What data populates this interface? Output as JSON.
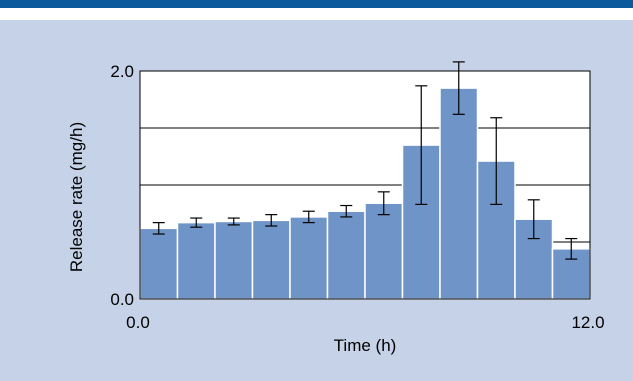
{
  "colors": {
    "top_bar": "#0a5a9c",
    "panel_bg": "#c5d2e8",
    "plot_bg": "#ffffff",
    "bar_fill": "#6f94c8",
    "bar_edge": "#ffffff",
    "grid": "#000000",
    "error_bar": "#000000"
  },
  "chart_data": {
    "type": "bar",
    "title": "",
    "xlabel": "Time (h)",
    "ylabel": "Release rate (mg/h)",
    "xlim": [
      0,
      12
    ],
    "ylim": [
      0,
      2
    ],
    "x_tick_labels": [
      "0.0",
      "12.0"
    ],
    "y_tick_labels": [
      "0.0",
      "2.0"
    ],
    "gridlines_y": [
      0.5,
      1.0,
      1.5
    ],
    "grid": true,
    "bin_width_h": 1,
    "bins": [
      {
        "start": 0,
        "end": 1,
        "value": 0.62,
        "err": 0.05
      },
      {
        "start": 1,
        "end": 2,
        "value": 0.67,
        "err": 0.04
      },
      {
        "start": 2,
        "end": 3,
        "value": 0.68,
        "err": 0.03
      },
      {
        "start": 3,
        "end": 4,
        "value": 0.69,
        "err": 0.05
      },
      {
        "start": 4,
        "end": 5,
        "value": 0.72,
        "err": 0.05
      },
      {
        "start": 5,
        "end": 6,
        "value": 0.77,
        "err": 0.05
      },
      {
        "start": 6,
        "end": 7,
        "value": 0.84,
        "err": 0.1
      },
      {
        "start": 7,
        "end": 8,
        "value": 1.35,
        "err": 0.52
      },
      {
        "start": 8,
        "end": 9,
        "value": 1.85,
        "err": 0.23
      },
      {
        "start": 9,
        "end": 10,
        "value": 1.21,
        "err": 0.38
      },
      {
        "start": 10,
        "end": 11,
        "value": 0.7,
        "err": 0.17
      },
      {
        "start": 11,
        "end": 12,
        "value": 0.44,
        "err": 0.09
      }
    ]
  }
}
